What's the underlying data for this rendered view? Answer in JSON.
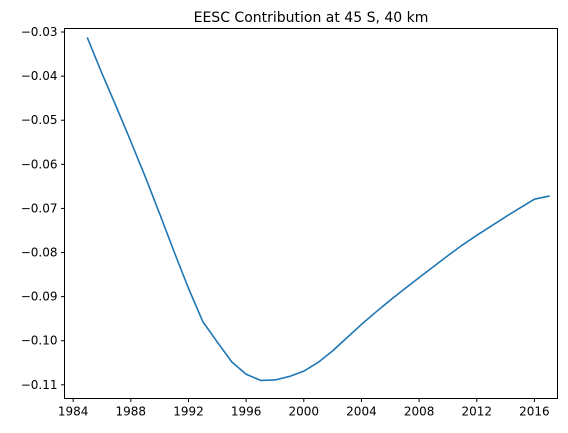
{
  "chart_data": {
    "type": "line",
    "title": "EESC Contribution at 45 S, 40 km",
    "xlabel": "",
    "ylabel": "",
    "x_ticks": [
      "1984",
      "1988",
      "1992",
      "1996",
      "2000",
      "2004",
      "2008",
      "2012",
      "2016"
    ],
    "y_ticks": [
      "-0.03",
      "-0.04",
      "-0.05",
      "-0.06",
      "-0.07",
      "-0.08",
      "-0.09",
      "-0.10",
      "-0.11"
    ],
    "xlim": [
      1983.4,
      2017.6
    ],
    "ylim": [
      -0.1131,
      -0.0292
    ],
    "grid": false,
    "series": [
      {
        "color": "#1f77b4",
        "x": [
          1985,
          1986,
          1987,
          1988,
          1989,
          1990,
          1991,
          1992,
          1993,
          1994,
          1995,
          1996,
          1997,
          1998,
          1999,
          2000,
          2001,
          2002,
          2003,
          2004,
          2005,
          2006,
          2007,
          2008,
          2009,
          2010,
          2011,
          2012,
          2013,
          2014,
          2015,
          2016,
          2017
        ],
        "y": [
          -0.0314,
          -0.0394,
          -0.047,
          -0.0548,
          -0.0628,
          -0.0712,
          -0.0798,
          -0.0881,
          -0.0957,
          -0.1003,
          -0.1048,
          -0.1076,
          -0.109,
          -0.1089,
          -0.1081,
          -0.1069,
          -0.1049,
          -0.1023,
          -0.0993,
          -0.0963,
          -0.0935,
          -0.0908,
          -0.0882,
          -0.0857,
          -0.0832,
          -0.0807,
          -0.0783,
          -0.0761,
          -0.074,
          -0.0719,
          -0.0699,
          -0.0679,
          -0.0672
        ]
      }
    ]
  }
}
